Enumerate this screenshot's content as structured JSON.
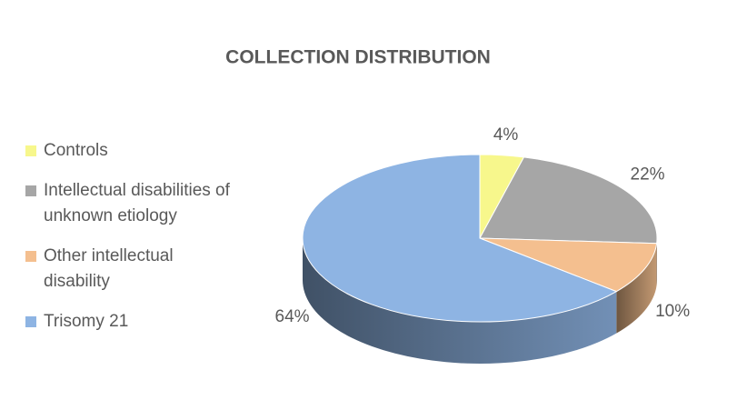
{
  "chart_data": {
    "type": "pie",
    "title": "COLLECTION DISTRIBUTION",
    "categories": [
      "Controls",
      "Intellectual disabilities of unknown etiology",
      "Other intellectual disability",
      "Trisomy 21"
    ],
    "values": [
      4,
      22,
      10,
      64
    ],
    "value_labels": [
      "4%",
      "22%",
      "10%",
      "64%"
    ],
    "colors": [
      "#f7f78c",
      "#a6a6a6",
      "#f4bf8f",
      "#8eb4e3"
    ],
    "legend": "left"
  }
}
